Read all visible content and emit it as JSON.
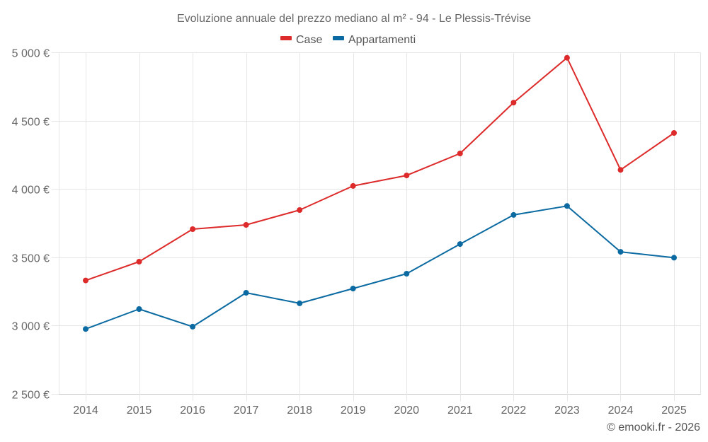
{
  "chart_data": {
    "type": "line",
    "title": "Evoluzione annuale del prezzo mediano al m² - 94 - Le Plessis-Trévise",
    "xlabel": "",
    "ylabel": "",
    "x": [
      "2014",
      "2015",
      "2016",
      "2017",
      "2018",
      "2019",
      "2020",
      "2021",
      "2022",
      "2023",
      "2024",
      "2025"
    ],
    "ylim": [
      2500,
      5000
    ],
    "yticks": [
      2500,
      3000,
      3500,
      4000,
      4500,
      5000
    ],
    "ytick_labels": [
      "2 500 €",
      "3 000 €",
      "3 500 €",
      "4 000 €",
      "4 500 €",
      "5 000 €"
    ],
    "grid": true,
    "legend_position": "top-center",
    "series": [
      {
        "name": "Case",
        "color": "#dd2a2a",
        "values": [
          3330,
          3468,
          3706,
          3737,
          3846,
          4022,
          4099,
          4260,
          4632,
          4960,
          4140,
          4410
        ]
      },
      {
        "name": "Appartamenti",
        "color": "#0a6aa1",
        "values": [
          2975,
          3121,
          2992,
          3240,
          3163,
          3271,
          3380,
          3597,
          3810,
          3875,
          3540,
          3497
        ]
      }
    ]
  },
  "credit": "© emooki.fr - 2026"
}
